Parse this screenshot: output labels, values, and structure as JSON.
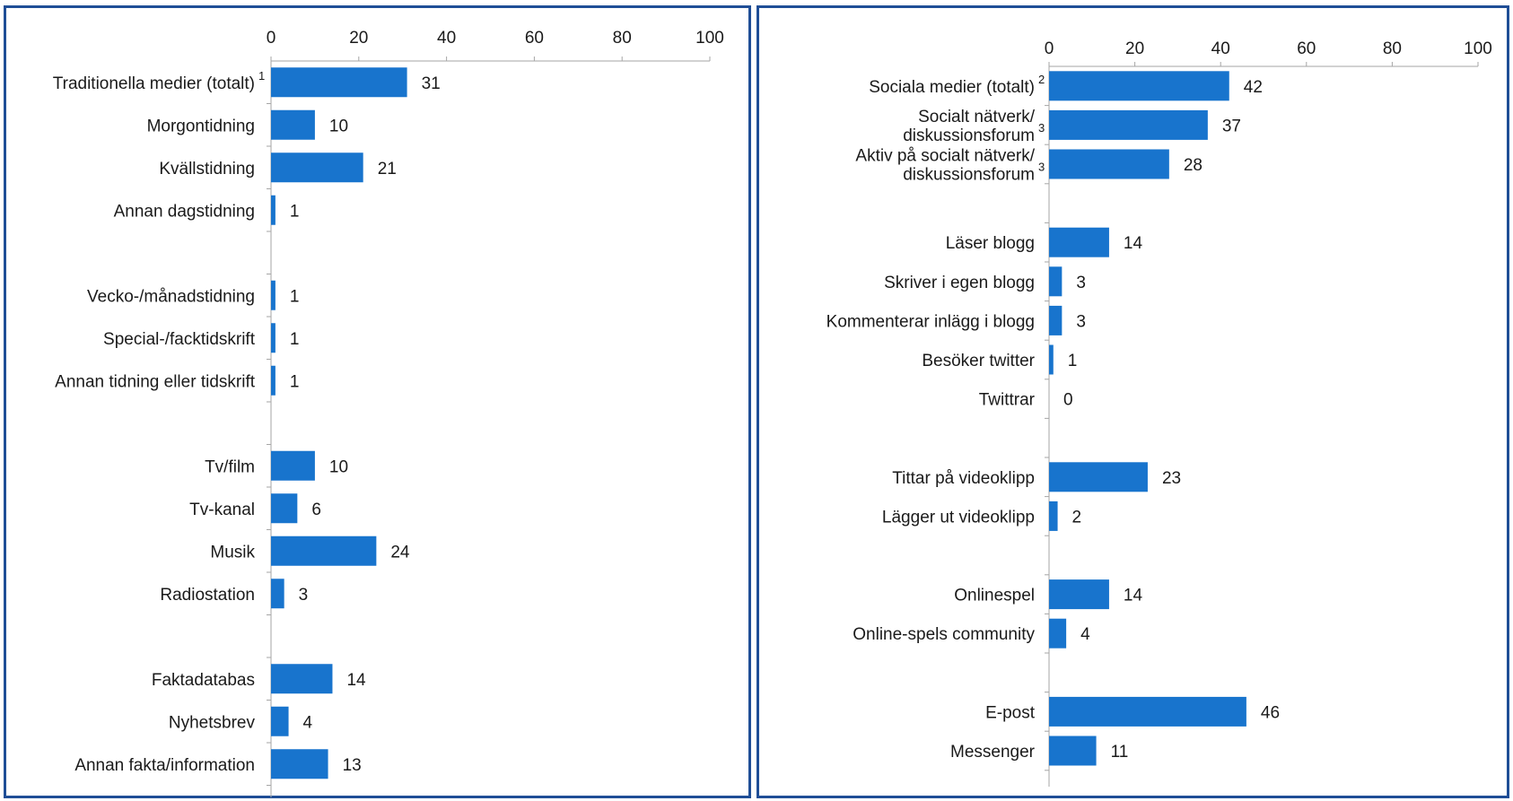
{
  "chart_data": [
    {
      "type": "bar",
      "orientation": "horizontal",
      "xlim": [
        0,
        100
      ],
      "ticks": [
        "0",
        "20",
        "40",
        "60",
        "80",
        "100"
      ],
      "bar_color": "#1874cd",
      "axis_color": "#a6a6a6",
      "rows": [
        {
          "label": "Traditionella medier (totalt)",
          "value": 31,
          "note": "1"
        },
        {
          "label": "Morgontidning",
          "value": 10
        },
        {
          "label": "Kvällstidning",
          "value": 21
        },
        {
          "label": "Annan dagstidning",
          "value": 1
        },
        {
          "gap": true
        },
        {
          "label": "Vecko-/månadstidning",
          "value": 1
        },
        {
          "label": "Special-/facktidskrift",
          "value": 1
        },
        {
          "label": "Annan tidning eller tidskrift",
          "value": 1
        },
        {
          "gap": true
        },
        {
          "label": "Tv/film",
          "value": 10
        },
        {
          "label": "Tv-kanal",
          "value": 6
        },
        {
          "label": "Musik",
          "value": 24
        },
        {
          "label": "Radiostation",
          "value": 3
        },
        {
          "gap": true
        },
        {
          "label": "Faktadatabas",
          "value": 14
        },
        {
          "label": "Nyhetsbrev",
          "value": 4
        },
        {
          "label": "Annan fakta/information",
          "value": 13
        }
      ]
    },
    {
      "type": "bar",
      "orientation": "horizontal",
      "xlim": [
        0,
        100
      ],
      "ticks": [
        "0",
        "20",
        "40",
        "60",
        "80",
        "100"
      ],
      "bar_color": "#1874cd",
      "axis_color": "#a6a6a6",
      "rows": [
        {
          "label": "Sociala medier (totalt)",
          "value": 42,
          "note": "2"
        },
        {
          "label": [
            "Socialt nätverk/",
            "diskussionsforum"
          ],
          "value": 37,
          "note": "3"
        },
        {
          "label": [
            "Aktiv på socialt nätverk/",
            "diskussionsforum"
          ],
          "value": 28,
          "note": "3"
        },
        {
          "gap": true
        },
        {
          "label": "Läser blogg",
          "value": 14
        },
        {
          "label": "Skriver i egen blogg",
          "value": 3
        },
        {
          "label": "Kommenterar inlägg i blogg",
          "value": 3
        },
        {
          "label": "Besöker twitter",
          "value": 1
        },
        {
          "label": "Twittrar",
          "value": 0
        },
        {
          "gap": true
        },
        {
          "label": "Tittar på videoklipp",
          "value": 23
        },
        {
          "label": "Lägger ut videoklipp",
          "value": 2
        },
        {
          "gap": true
        },
        {
          "label": "Onlinespel",
          "value": 14
        },
        {
          "label": "Online-spels community",
          "value": 4
        },
        {
          "gap": true
        },
        {
          "label": "E-post",
          "value": 46
        },
        {
          "label": "Messenger",
          "value": 11
        }
      ]
    }
  ]
}
